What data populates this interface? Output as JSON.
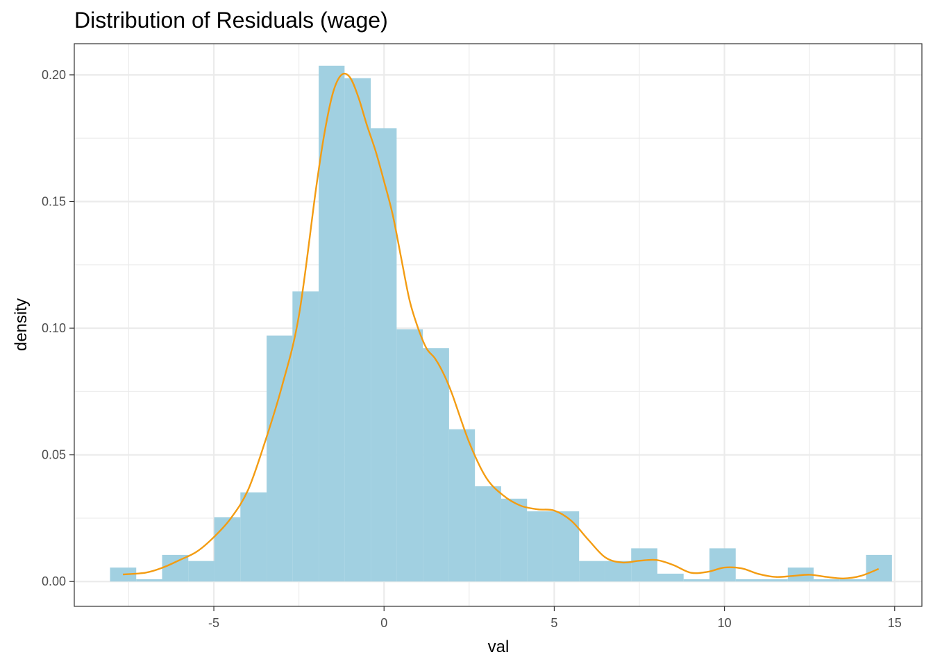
{
  "chart_data": {
    "type": "histogram",
    "title": "Distribution of Residuals (wage)",
    "xlabel": "val",
    "ylabel": "density",
    "xlim": [
      -9.1,
      15.8
    ],
    "ylim": [
      -0.0098,
      0.2123
    ],
    "x_ticks": [
      -5,
      0,
      5,
      10,
      15
    ],
    "x_tick_labels": [
      "-5",
      "0",
      "5",
      "10",
      "15"
    ],
    "x_minor": [
      -7.5,
      -2.5,
      2.5,
      7.5,
      12.5
    ],
    "y_ticks": [
      0,
      0.05,
      0.1,
      0.15,
      0.2
    ],
    "y_tick_labels": [
      "0.00",
      "0.05",
      "0.10",
      "0.15",
      "0.20"
    ],
    "y_minor": [
      0.025,
      0.075,
      0.125,
      0.175
    ],
    "grid": true,
    "bin_width": 0.766,
    "bins": [
      {
        "x0": -8.05,
        "x1": -7.28,
        "density": 0.0055
      },
      {
        "x0": -7.28,
        "x1": -6.52,
        "density": 0.0009
      },
      {
        "x0": -6.52,
        "x1": -5.75,
        "density": 0.0105
      },
      {
        "x0": -5.75,
        "x1": -4.99,
        "density": 0.0081
      },
      {
        "x0": -4.99,
        "x1": -4.22,
        "density": 0.0254
      },
      {
        "x0": -4.22,
        "x1": -3.45,
        "density": 0.0352
      },
      {
        "x0": -3.45,
        "x1": -2.69,
        "density": 0.0971
      },
      {
        "x0": -2.69,
        "x1": -1.92,
        "density": 0.1145
      },
      {
        "x0": -1.92,
        "x1": -1.16,
        "density": 0.2036
      },
      {
        "x0": -1.16,
        "x1": -0.39,
        "density": 0.1987
      },
      {
        "x0": -0.39,
        "x1": 0.37,
        "density": 0.1789
      },
      {
        "x0": 0.37,
        "x1": 1.14,
        "density": 0.0996
      },
      {
        "x0": 1.14,
        "x1": 1.91,
        "density": 0.0921
      },
      {
        "x0": 1.91,
        "x1": 2.67,
        "density": 0.0601
      },
      {
        "x0": 2.67,
        "x1": 3.44,
        "density": 0.0376
      },
      {
        "x0": 3.44,
        "x1": 4.2,
        "density": 0.0327
      },
      {
        "x0": 4.2,
        "x1": 4.97,
        "density": 0.0277
      },
      {
        "x0": 4.97,
        "x1": 5.73,
        "density": 0.0277
      },
      {
        "x0": 5.73,
        "x1": 6.5,
        "density": 0.0081
      },
      {
        "x0": 6.5,
        "x1": 7.26,
        "density": 0.0081
      },
      {
        "x0": 7.26,
        "x1": 8.03,
        "density": 0.0131
      },
      {
        "x0": 8.03,
        "x1": 8.8,
        "density": 0.0031
      },
      {
        "x0": 8.8,
        "x1": 9.56,
        "density": 0.0009
      },
      {
        "x0": 9.56,
        "x1": 10.33,
        "density": 0.0131
      },
      {
        "x0": 10.33,
        "x1": 11.09,
        "density": 0.0009
      },
      {
        "x0": 11.09,
        "x1": 11.86,
        "density": 0.0009
      },
      {
        "x0": 11.86,
        "x1": 12.62,
        "density": 0.0055
      },
      {
        "x0": 12.62,
        "x1": 13.39,
        "density": 0.0009
      },
      {
        "x0": 13.39,
        "x1": 14.16,
        "density": 0.0009
      },
      {
        "x0": 14.16,
        "x1": 14.92,
        "density": 0.0105
      }
    ],
    "density_curve": {
      "x": [
        -7.67,
        -7.0,
        -6.5,
        -6.0,
        -5.5,
        -5.0,
        -4.5,
        -4.0,
        -3.5,
        -3.0,
        -2.5,
        -2.0,
        -1.75,
        -1.5,
        -1.25,
        -1.0,
        -0.75,
        -0.5,
        -0.25,
        0.0,
        0.25,
        0.5,
        0.75,
        1.0,
        1.25,
        1.5,
        1.75,
        2.0,
        2.5,
        3.0,
        3.5,
        4.0,
        4.5,
        5.0,
        5.5,
        6.0,
        6.5,
        7.0,
        7.5,
        8.0,
        8.5,
        9.0,
        9.5,
        10.0,
        10.5,
        11.0,
        11.5,
        12.0,
        12.5,
        13.0,
        13.5,
        14.0,
        14.53
      ],
      "y": [
        0.0028,
        0.0035,
        0.0055,
        0.0085,
        0.0118,
        0.0175,
        0.025,
        0.036,
        0.055,
        0.077,
        0.105,
        0.155,
        0.177,
        0.193,
        0.2,
        0.199,
        0.191,
        0.18,
        0.17,
        0.158,
        0.145,
        0.128,
        0.111,
        0.1,
        0.092,
        0.088,
        0.082,
        0.074,
        0.055,
        0.041,
        0.034,
        0.03,
        0.0285,
        0.028,
        0.024,
        0.0165,
        0.0095,
        0.0075,
        0.0082,
        0.0085,
        0.0065,
        0.0035,
        0.0038,
        0.0055,
        0.0052,
        0.003,
        0.0018,
        0.0022,
        0.0027,
        0.0018,
        0.0012,
        0.0022,
        0.005
      ]
    },
    "colors": {
      "bars": "#a1d0e1",
      "density_line": "#f39c12",
      "grid": "#ebebeb",
      "panel_border": "#333333",
      "background": "#ffffff"
    }
  }
}
